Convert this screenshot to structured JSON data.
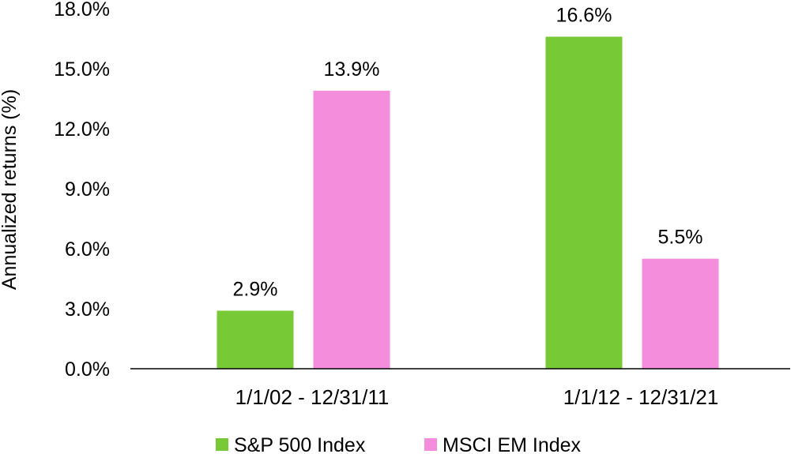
{
  "chart_data": {
    "type": "bar",
    "title": "",
    "xlabel": "",
    "ylabel": "Annualized returns (%)",
    "ylim": [
      0,
      18
    ],
    "yticks": [
      0,
      3,
      6,
      9,
      12,
      15,
      18
    ],
    "ytick_labels": [
      "0.0%",
      "3.0%",
      "6.0%",
      "9.0%",
      "12.0%",
      "15.0%",
      "18.0%"
    ],
    "categories": [
      "1/1/02 - 12/31/11",
      "1/1/12 - 12/31/21"
    ],
    "series": [
      {
        "name": "S&P 500 Index",
        "color": "#77c935",
        "values": [
          2.9,
          16.6
        ],
        "labels": [
          "2.9%",
          "16.6%"
        ]
      },
      {
        "name": "MSCI EM Index",
        "color": "#f48ddc",
        "values": [
          13.9,
          5.5
        ],
        "labels": [
          "13.9%",
          "5.5%"
        ]
      }
    ],
    "grid": false,
    "legend_position": "bottom-center"
  }
}
